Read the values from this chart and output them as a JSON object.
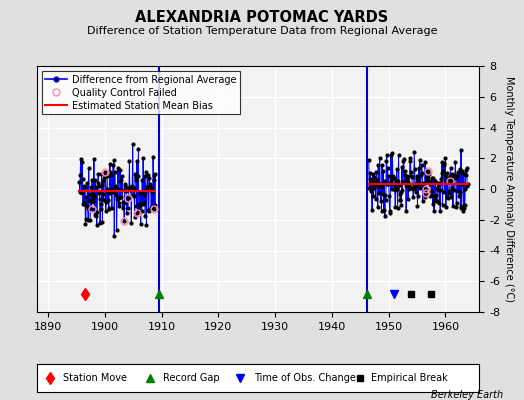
{
  "title": "ALEXANDRIA POTOMAC YARDS",
  "subtitle": "Difference of Station Temperature Data from Regional Average",
  "ylabel": "Monthly Temperature Anomaly Difference (°C)",
  "xlabel_ticks": [
    1890,
    1900,
    1910,
    1920,
    1930,
    1940,
    1950,
    1960
  ],
  "xlim": [
    1888,
    1966
  ],
  "ylim": [
    -8,
    8
  ],
  "yticks": [
    -8,
    -6,
    -4,
    -2,
    0,
    2,
    4,
    6,
    8
  ],
  "bg_color": "#e0e0e0",
  "plot_bg_color": "#f2f2f2",
  "grid_color": "#ffffff",
  "credit": "Berkeley Earth",
  "vertical_line_x1": 1909.5,
  "vertical_line_x2": 1946.25,
  "period1_start": 1895.5,
  "period1_months": 162,
  "period1_bias": -0.15,
  "period2_start": 1946.5,
  "period2_months": 210,
  "period2_bias": 0.35
}
